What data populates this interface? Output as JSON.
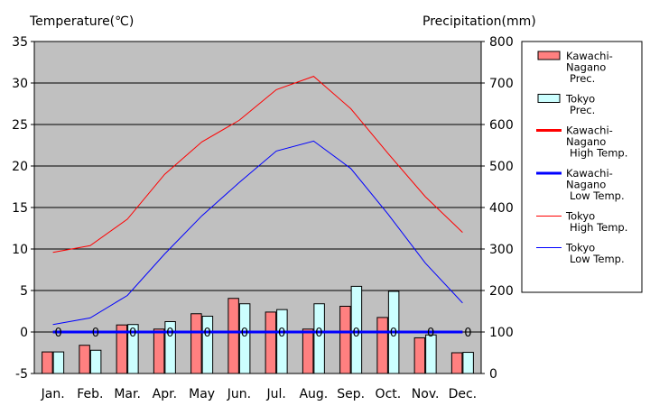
{
  "chart_data": {
    "type": "bar+line",
    "left_axis_label": "Temperature(℃)",
    "right_axis_label": "Precipitation(mm)",
    "categories": [
      "Jan.",
      "Feb.",
      "Mar.",
      "Apr.",
      "May",
      "Jun.",
      "Jul.",
      "Aug.",
      "Sep.",
      "Oct.",
      "Nov.",
      "Dec."
    ],
    "ylim_left": [
      -5,
      35
    ],
    "ylim_right": [
      0,
      800
    ],
    "left_ticks": [
      -5,
      0,
      5,
      10,
      15,
      20,
      25,
      30,
      35
    ],
    "right_ticks": [
      0,
      100,
      200,
      300,
      400,
      500,
      600,
      700,
      800
    ],
    "bar_series": [
      {
        "name": "Kawachi-Nagano Prec.",
        "color": "#ff8080",
        "values": [
          52,
          68,
          117,
          107,
          144,
          181,
          148,
          107,
          162,
          135,
          86,
          50
        ]
      },
      {
        "name": "Tokyo Prec.",
        "color": "#ccffff",
        "values": [
          52,
          56,
          118,
          125,
          138,
          168,
          154,
          168,
          210,
          198,
          93,
          51
        ]
      }
    ],
    "line_series": [
      {
        "name": "Kawachi-Nagano High Temp.",
        "color": "#ff0000",
        "width": 3,
        "values": [
          0,
          0,
          0,
          0,
          0,
          0,
          0,
          0,
          0,
          0,
          0,
          0
        ],
        "point_labels": [
          "0",
          "0",
          "0",
          "0",
          "0",
          "0",
          "0",
          "0",
          "0",
          "0",
          "0",
          "0"
        ]
      },
      {
        "name": "Kawachi-Nagano Low Temp.",
        "color": "#0000ff",
        "width": 3,
        "values": [
          0,
          0,
          0,
          0,
          0,
          0,
          0,
          0,
          0,
          0,
          0,
          0
        ],
        "point_labels": [
          "0",
          "0",
          "0",
          "0",
          "0",
          "0",
          "0",
          "0",
          "0",
          "0",
          "0",
          "0"
        ]
      },
      {
        "name": "Tokyo High Temp.",
        "color": "#ff0000",
        "width": 1,
        "values": [
          9.6,
          10.4,
          13.6,
          19.0,
          22.9,
          25.5,
          29.2,
          30.8,
          26.9,
          21.5,
          16.3,
          12.0
        ]
      },
      {
        "name": "Tokyo Low Temp.",
        "color": "#0000ff",
        "width": 1,
        "values": [
          0.9,
          1.7,
          4.4,
          9.4,
          14.0,
          18.0,
          21.8,
          23.0,
          19.7,
          14.2,
          8.3,
          3.5
        ]
      }
    ],
    "legend_position": "right",
    "legend": [
      {
        "kind": "bar",
        "color": "#ff8080",
        "lines": [
          "Kawachi-",
          "Nagano",
          "Prec."
        ]
      },
      {
        "kind": "bar",
        "color": "#ccffff",
        "lines": [
          "Tokyo",
          "Prec."
        ]
      },
      {
        "kind": "line",
        "color": "#ff0000",
        "width": 3,
        "lines": [
          "Kawachi-",
          "Nagano",
          "High Temp."
        ]
      },
      {
        "kind": "line",
        "color": "#0000ff",
        "width": 3,
        "lines": [
          "Kawachi-",
          "Nagano",
          "Low Temp."
        ]
      },
      {
        "kind": "line",
        "color": "#ff0000",
        "width": 1,
        "lines": [
          "Tokyo",
          "High Temp."
        ]
      },
      {
        "kind": "line",
        "color": "#0000ff",
        "width": 1,
        "lines": [
          "Tokyo",
          "Low Temp."
        ]
      }
    ],
    "plot_background": "#c0c0c0",
    "grid": true
  }
}
